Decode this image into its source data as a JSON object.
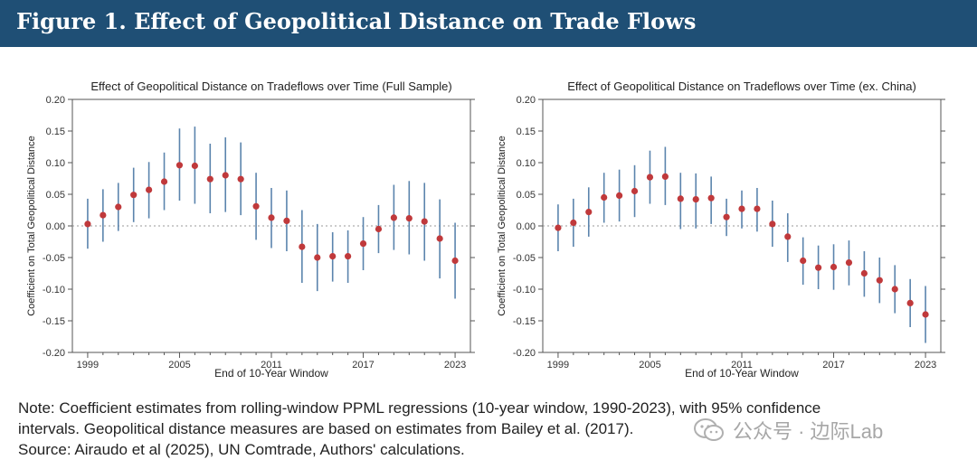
{
  "figure": {
    "title": "Figure 1. Effect of Geopolitical Distance on Trade Flows"
  },
  "colors": {
    "banner": "#1f4f75",
    "point": "#c0393b",
    "error_bar": "#5b84ad",
    "zero_line": "#999999"
  },
  "chart_data": [
    {
      "type": "scatter",
      "title": "Effect of Geopolitical Distance on Tradeflows over Time (Full Sample)",
      "xlabel": "End of 10-Year Window",
      "ylabel": "Coefficient on Total Geopolitical Distance",
      "x_ticks": [
        1999,
        2005,
        2011,
        2017,
        2023
      ],
      "y_ticks": [
        "0.20",
        "0.15",
        "0.10",
        "0.05",
        "0.00",
        "-0.05",
        "-0.10",
        "-0.15",
        "-0.20"
      ],
      "xlim": [
        1998,
        2024
      ],
      "ylim": [
        -0.2,
        0.2
      ],
      "zero_line": "dotted",
      "series": [
        {
          "x": [
            1999,
            2000,
            2001,
            2002,
            2003,
            2004,
            2005,
            2006,
            2007,
            2008,
            2009,
            2010,
            2011,
            2012,
            2013,
            2014,
            2015,
            2016,
            2017,
            2018,
            2019,
            2020,
            2021,
            2022,
            2023
          ],
          "y": [
            0.003,
            0.017,
            0.03,
            0.049,
            0.057,
            0.07,
            0.096,
            0.095,
            0.074,
            0.08,
            0.074,
            0.031,
            0.013,
            0.008,
            -0.033,
            -0.05,
            -0.048,
            -0.048,
            -0.028,
            -0.005,
            0.013,
            0.012,
            0.007,
            -0.02,
            -0.055
          ],
          "lower": [
            -0.036,
            -0.025,
            -0.008,
            0.006,
            0.012,
            0.025,
            0.04,
            0.035,
            0.02,
            0.022,
            0.017,
            -0.022,
            -0.035,
            -0.04,
            -0.09,
            -0.103,
            -0.088,
            -0.09,
            -0.07,
            -0.043,
            -0.038,
            -0.045,
            -0.055,
            -0.083,
            -0.115
          ],
          "upper": [
            0.043,
            0.058,
            0.068,
            0.092,
            0.101,
            0.116,
            0.154,
            0.157,
            0.13,
            0.14,
            0.132,
            0.084,
            0.06,
            0.056,
            0.025,
            0.003,
            -0.01,
            -0.007,
            0.014,
            0.033,
            0.065,
            0.071,
            0.068,
            0.042,
            0.005
          ]
        }
      ]
    },
    {
      "type": "scatter",
      "title": "Effect of Geopolitical Distance on Tradeflows over Time (ex. China)",
      "xlabel": "End of 10-Year Window",
      "ylabel": "Coefficient on Total Geopolitical Distance",
      "x_ticks": [
        1999,
        2005,
        2011,
        2017,
        2023
      ],
      "y_ticks": [
        "0.20",
        "0.15",
        "0.10",
        "0.05",
        "0.00",
        "-0.05",
        "-0.10",
        "-0.15",
        "-0.20"
      ],
      "xlim": [
        1998,
        2024
      ],
      "ylim": [
        -0.2,
        0.2
      ],
      "zero_line": "dotted",
      "series": [
        {
          "x": [
            1999,
            2000,
            2001,
            2002,
            2003,
            2004,
            2005,
            2006,
            2007,
            2008,
            2009,
            2010,
            2011,
            2012,
            2013,
            2014,
            2015,
            2016,
            2017,
            2018,
            2019,
            2020,
            2021,
            2022,
            2023
          ],
          "y": [
            -0.003,
            0.005,
            0.022,
            0.045,
            0.048,
            0.055,
            0.077,
            0.078,
            0.043,
            0.042,
            0.044,
            0.014,
            0.027,
            0.027,
            0.003,
            -0.017,
            -0.055,
            -0.066,
            -0.065,
            -0.058,
            -0.075,
            -0.086,
            -0.1,
            -0.122,
            -0.14
          ],
          "lower": [
            -0.04,
            -0.033,
            -0.017,
            0.005,
            0.007,
            0.014,
            0.035,
            0.033,
            -0.005,
            -0.004,
            0.003,
            -0.016,
            -0.004,
            -0.009,
            -0.033,
            -0.057,
            -0.093,
            -0.1,
            -0.101,
            -0.094,
            -0.112,
            -0.122,
            -0.138,
            -0.16,
            -0.185
          ],
          "upper": [
            0.034,
            0.043,
            0.061,
            0.084,
            0.089,
            0.096,
            0.119,
            0.125,
            0.084,
            0.083,
            0.078,
            0.043,
            0.056,
            0.06,
            0.04,
            0.02,
            -0.018,
            -0.031,
            -0.029,
            -0.023,
            -0.04,
            -0.05,
            -0.062,
            -0.084,
            -0.095
          ]
        }
      ]
    }
  ],
  "note": {
    "line1": "Note: Coefficient estimates from rolling-window PPML regressions (10-year window, 1990-2023), with 95% confidence",
    "line2": "intervals. Geopolitical distance measures are based on estimates from Bailey et al. (2017).",
    "line3": "Source: Airaudo et al (2025), UN Comtrade, Authors' calculations."
  },
  "watermark": {
    "text": "公众号 · 边际Lab",
    "icon": "wechat-icon"
  }
}
